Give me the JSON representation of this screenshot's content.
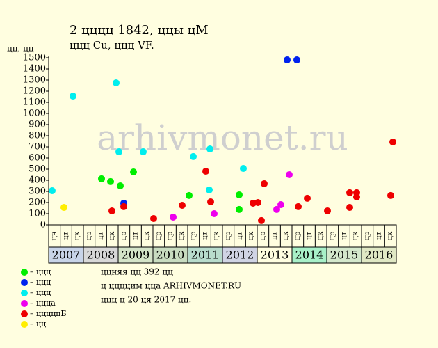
{
  "chart_data": {
    "type": "scatter",
    "title": "2 цццц 1842, ццы цМ",
    "subtitle": "ццц Cu, ццц VF.",
    "y_label": "цц, цц",
    "watermark": "arhivmonet.ru",
    "notes": [
      "ццняя цц 392 цц",
      "ц ццццим цца ARHIVMONET.RU",
      "ццц ц 20 ця 2017 цц."
    ],
    "xlim": [
      2007,
      2017
    ],
    "ylim": [
      0,
      1500
    ],
    "yticks": [
      0,
      100,
      200,
      300,
      400,
      500,
      600,
      700,
      800,
      900,
      1000,
      1100,
      1200,
      1300,
      1400,
      1500
    ],
    "categories": [
      "цн",
      "цт",
      "цк",
      "цр",
      "цт",
      "цк",
      "цр",
      "цт",
      "цк",
      "цр",
      "цр",
      "цк",
      "цр",
      "цт",
      "цк",
      "цр",
      "цт",
      "цк",
      "цр",
      "цт",
      "цк",
      "цр",
      "цт",
      "цк",
      "цр",
      "цт",
      "цк",
      "цр",
      "цт",
      "цк"
    ],
    "years": [
      "2007",
      "2008",
      "2009",
      "2010",
      "2011",
      "2012",
      "2013",
      "2014",
      "2015",
      "2016"
    ],
    "year_colors": [
      "#c8d4e8",
      "#d8d8d8",
      "#d4e4c8",
      "#c8dcc0",
      "#b8dccc",
      "#d0d4e4",
      "#fffee0",
      "#a8f0c8",
      "#d4e8cc",
      "#e0e8c4"
    ],
    "series": [
      {
        "name": "– ццц",
        "color": "#00ee00",
        "x": [
          2008.52,
          2008.78,
          2009.06,
          2009.44,
          2011.04,
          2012.48,
          2012.48
        ],
        "values": [
          413,
          388,
          350,
          475,
          263,
          269,
          138
        ]
      },
      {
        "name": "– ццц",
        "color": "#0022ee",
        "x": [
          2009.16,
          2013.86,
          2014.14
        ],
        "values": [
          194,
          1481,
          1481
        ]
      },
      {
        "name": "– ццц",
        "color": "#00eeee",
        "x": [
          2007.1,
          2007.7,
          2008.94,
          2009.02,
          2009.72,
          2011.16,
          2011.64,
          2011.62,
          2012.6
        ],
        "values": [
          306,
          1156,
          1275,
          656,
          656,
          613,
          681,
          313,
          506
        ]
      },
      {
        "name": "– ццца",
        "color": "#ee00ee",
        "x": [
          2010.58,
          2011.76,
          2013.56,
          2013.68,
          2013.92
        ],
        "values": [
          69,
          100,
          138,
          181,
          450
        ]
      },
      {
        "name": "– цццццБ",
        "color": "#ee0000",
        "x": [
          2008.82,
          2009.16,
          2010.02,
          2010.84,
          2011.52,
          2011.66,
          2012.88,
          2013.02,
          2013.12,
          2013.2,
          2014.18,
          2014.44,
          2015.02,
          2015.66,
          2015.66,
          2015.86,
          2015.86,
          2016.9,
          2016.84
        ],
        "values": [
          125,
          163,
          56,
          175,
          481,
          206,
          194,
          200,
          38,
          369,
          163,
          238,
          125,
          156,
          288,
          288,
          250,
          744,
          263
        ]
      },
      {
        "name": "– цц",
        "color": "#ffee00",
        "x": [
          2007.44
        ],
        "values": [
          156
        ]
      }
    ]
  }
}
